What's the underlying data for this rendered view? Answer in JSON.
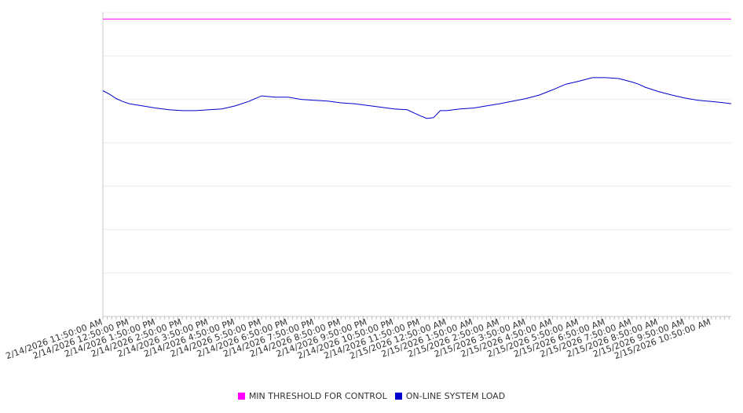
{
  "chart_data": {
    "type": "line",
    "title": "",
    "xlabel": "",
    "ylabel": "",
    "grid": true,
    "legend_position": "bottom-center",
    "x_ticks": [
      "2/14/2026 11:50:00 AM",
      "2/14/2026 12:50:00 PM",
      "2/14/2026 1:50:00 PM",
      "2/14/2026 2:50:00 PM",
      "2/14/2026 3:50:00 PM",
      "2/14/2026 4:50:00 PM",
      "2/14/2026 5:50:00 PM",
      "2/14/2026 6:50:00 PM",
      "2/14/2026 7:50:00 PM",
      "2/14/2026 8:50:00 PM",
      "2/14/2026 9:50:00 PM",
      "2/14/2026 10:50:00 PM",
      "2/14/2026 11:50:00 PM",
      "2/15/2026 12:50:00 AM",
      "2/15/2026 1:50:00 AM",
      "2/15/2026 2:50:00 AM",
      "2/15/2026 3:50:00 AM",
      "2/15/2026 4:50:00 AM",
      "2/15/2026 5:50:00 AM",
      "2/15/2026 6:50:00 AM",
      "2/15/2026 7:50:00 AM",
      "2/15/2026 8:50:00 AM",
      "2/15/2026 9:50:00 AM",
      "2/15/2026 10:50:00 AM"
    ],
    "series": [
      {
        "name": "MIN THRESHOLD FOR CONTROL",
        "color": "#ff00ff",
        "x": [
          0,
          23.75
        ],
        "values": [
          6.85,
          6.85
        ]
      },
      {
        "name": "ON-LINE SYSTEM LOAD",
        "color": "#0000cc",
        "x": [
          0,
          0.25,
          0.5,
          0.75,
          1,
          1.5,
          2,
          2.5,
          3,
          3.5,
          4,
          4.5,
          5,
          5.5,
          6,
          6.5,
          6.75,
          7,
          7.5,
          8,
          8.5,
          9,
          9.5,
          10,
          10.5,
          11,
          11.5,
          12,
          12.25,
          12.5,
          12.75,
          13,
          13.5,
          14,
          14.5,
          15,
          15.5,
          16,
          16.5,
          17,
          17.5,
          18,
          18.5,
          19,
          19.5,
          20,
          20.25,
          20.5,
          21,
          21.5,
          22,
          22.5,
          23,
          23.5,
          23.75
        ],
        "values": [
          5.2,
          5.12,
          5.02,
          4.95,
          4.9,
          4.85,
          4.8,
          4.76,
          4.74,
          4.74,
          4.76,
          4.78,
          4.85,
          4.95,
          5.08,
          5.05,
          5.05,
          5.05,
          5.0,
          4.98,
          4.96,
          4.92,
          4.9,
          4.86,
          4.82,
          4.78,
          4.76,
          4.62,
          4.56,
          4.58,
          4.74,
          4.74,
          4.78,
          4.8,
          4.85,
          4.9,
          4.96,
          5.02,
          5.1,
          5.22,
          5.35,
          5.42,
          5.5,
          5.5,
          5.48,
          5.4,
          5.35,
          5.28,
          5.18,
          5.1,
          5.03,
          4.98,
          4.95,
          4.92,
          4.9
        ]
      }
    ],
    "ylim": [
      0,
      7
    ]
  }
}
